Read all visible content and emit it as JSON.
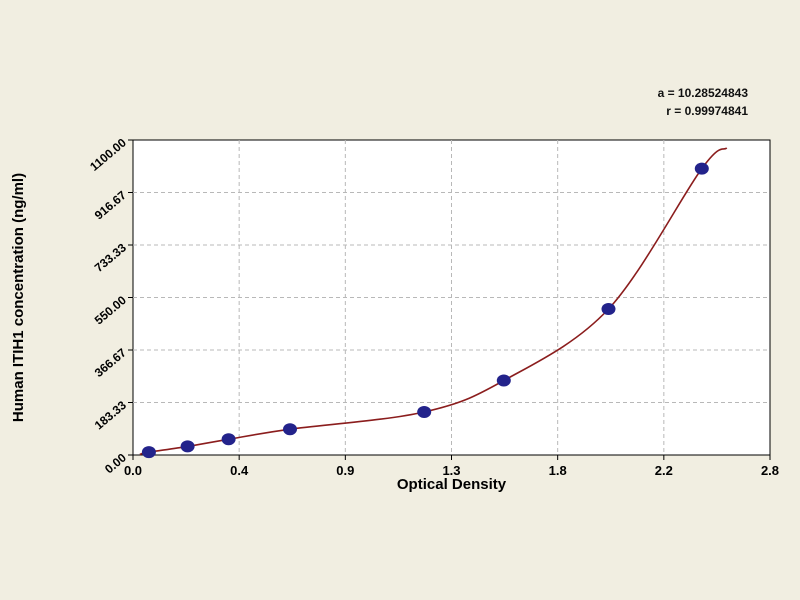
{
  "chart_data": {
    "type": "scatter",
    "title": "",
    "xlabel": "Optical Density",
    "ylabel": "Human ITIH1 concentration (ng/ml)",
    "xlim": [
      0,
      2.8
    ],
    "ylim": [
      0,
      1100
    ],
    "x_tick_labels": [
      "0.0",
      "0.4",
      "0.9",
      "1.3",
      "1.8",
      "2.2",
      "2.8"
    ],
    "y_tick_labels": [
      "0.00",
      "183.33",
      "366.67",
      "550.00",
      "733.33",
      "916.67",
      "1100.00"
    ],
    "grid": "dashed",
    "legend_position": "none",
    "annotations": [
      "a = 10.28524843",
      "r = 0.99974841"
    ],
    "colors": {
      "background": "#f1eee1",
      "plot_background": "#ffffff",
      "grid": "#b8b8b8",
      "curve": "#8b1d1d",
      "point": "#23238b",
      "axis": "#000000"
    },
    "series": [
      {
        "name": "standard-points",
        "type": "scatter",
        "color": "#23238b",
        "points": [
          [
            0.07,
            10
          ],
          [
            0.24,
            30
          ],
          [
            0.42,
            55
          ],
          [
            0.69,
            90
          ],
          [
            1.28,
            150
          ],
          [
            1.63,
            260
          ],
          [
            2.09,
            510
          ],
          [
            2.5,
            1000
          ]
        ]
      },
      {
        "name": "fit-curve",
        "type": "line",
        "color": "#8b1d1d",
        "points": [
          [
            0.03,
            2
          ],
          [
            0.07,
            10
          ],
          [
            0.24,
            30
          ],
          [
            0.42,
            55
          ],
          [
            0.69,
            90
          ],
          [
            1.28,
            150
          ],
          [
            1.63,
            260
          ],
          [
            2.09,
            510
          ],
          [
            2.5,
            1000
          ],
          [
            2.61,
            1072
          ]
        ]
      }
    ]
  }
}
